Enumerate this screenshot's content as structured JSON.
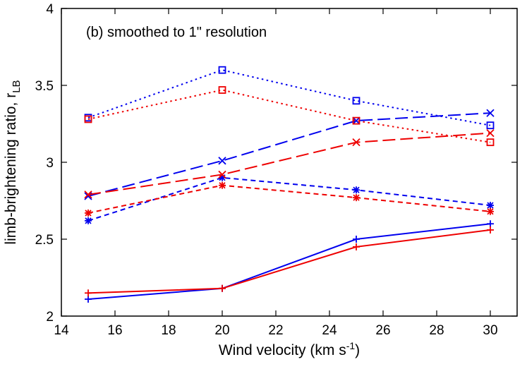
{
  "chart_data": {
    "type": "line",
    "annotation": "(b) smoothed to 1\" resolution",
    "xlabel": "Wind velocity (km s",
    "xlabel_sup": "-1",
    "xlabel_end": ")",
    "ylabel": "limb-brightening ratio, r",
    "ylabel_sub": "LB",
    "xlim": [
      14,
      31
    ],
    "ylim": [
      2,
      4
    ],
    "x_ticks": [
      14,
      16,
      18,
      20,
      22,
      24,
      26,
      28,
      30
    ],
    "y_ticks": [
      2,
      2.5,
      3,
      3.5,
      4
    ],
    "y_tick_labels": [
      "2",
      "2.5",
      "3",
      "3.5",
      "4"
    ],
    "grid": false,
    "legend": "none",
    "x": [
      15,
      20,
      25,
      30
    ],
    "series": [
      {
        "color": "#0000ee",
        "dash": "solid",
        "marker": "plus",
        "values": [
          2.11,
          2.18,
          2.5,
          2.6
        ]
      },
      {
        "color": "#ee0000",
        "dash": "solid",
        "marker": "plus",
        "values": [
          2.15,
          2.18,
          2.45,
          2.56
        ]
      },
      {
        "color": "#0000ee",
        "dash": "short",
        "marker": "star",
        "values": [
          2.62,
          2.9,
          2.82,
          2.72
        ]
      },
      {
        "color": "#ee0000",
        "dash": "short",
        "marker": "star",
        "values": [
          2.67,
          2.85,
          2.77,
          2.68
        ]
      },
      {
        "color": "#0000ee",
        "dash": "long",
        "marker": "cross",
        "values": [
          2.78,
          3.01,
          3.27,
          3.32
        ]
      },
      {
        "color": "#ee0000",
        "dash": "long",
        "marker": "cross",
        "values": [
          2.79,
          2.92,
          3.13,
          3.19
        ]
      },
      {
        "color": "#0000ee",
        "dash": "dot",
        "marker": "square",
        "values": [
          3.29,
          3.6,
          3.4,
          3.24
        ]
      },
      {
        "color": "#ee0000",
        "dash": "dot",
        "marker": "square",
        "values": [
          3.28,
          3.47,
          3.27,
          3.13
        ]
      }
    ]
  }
}
